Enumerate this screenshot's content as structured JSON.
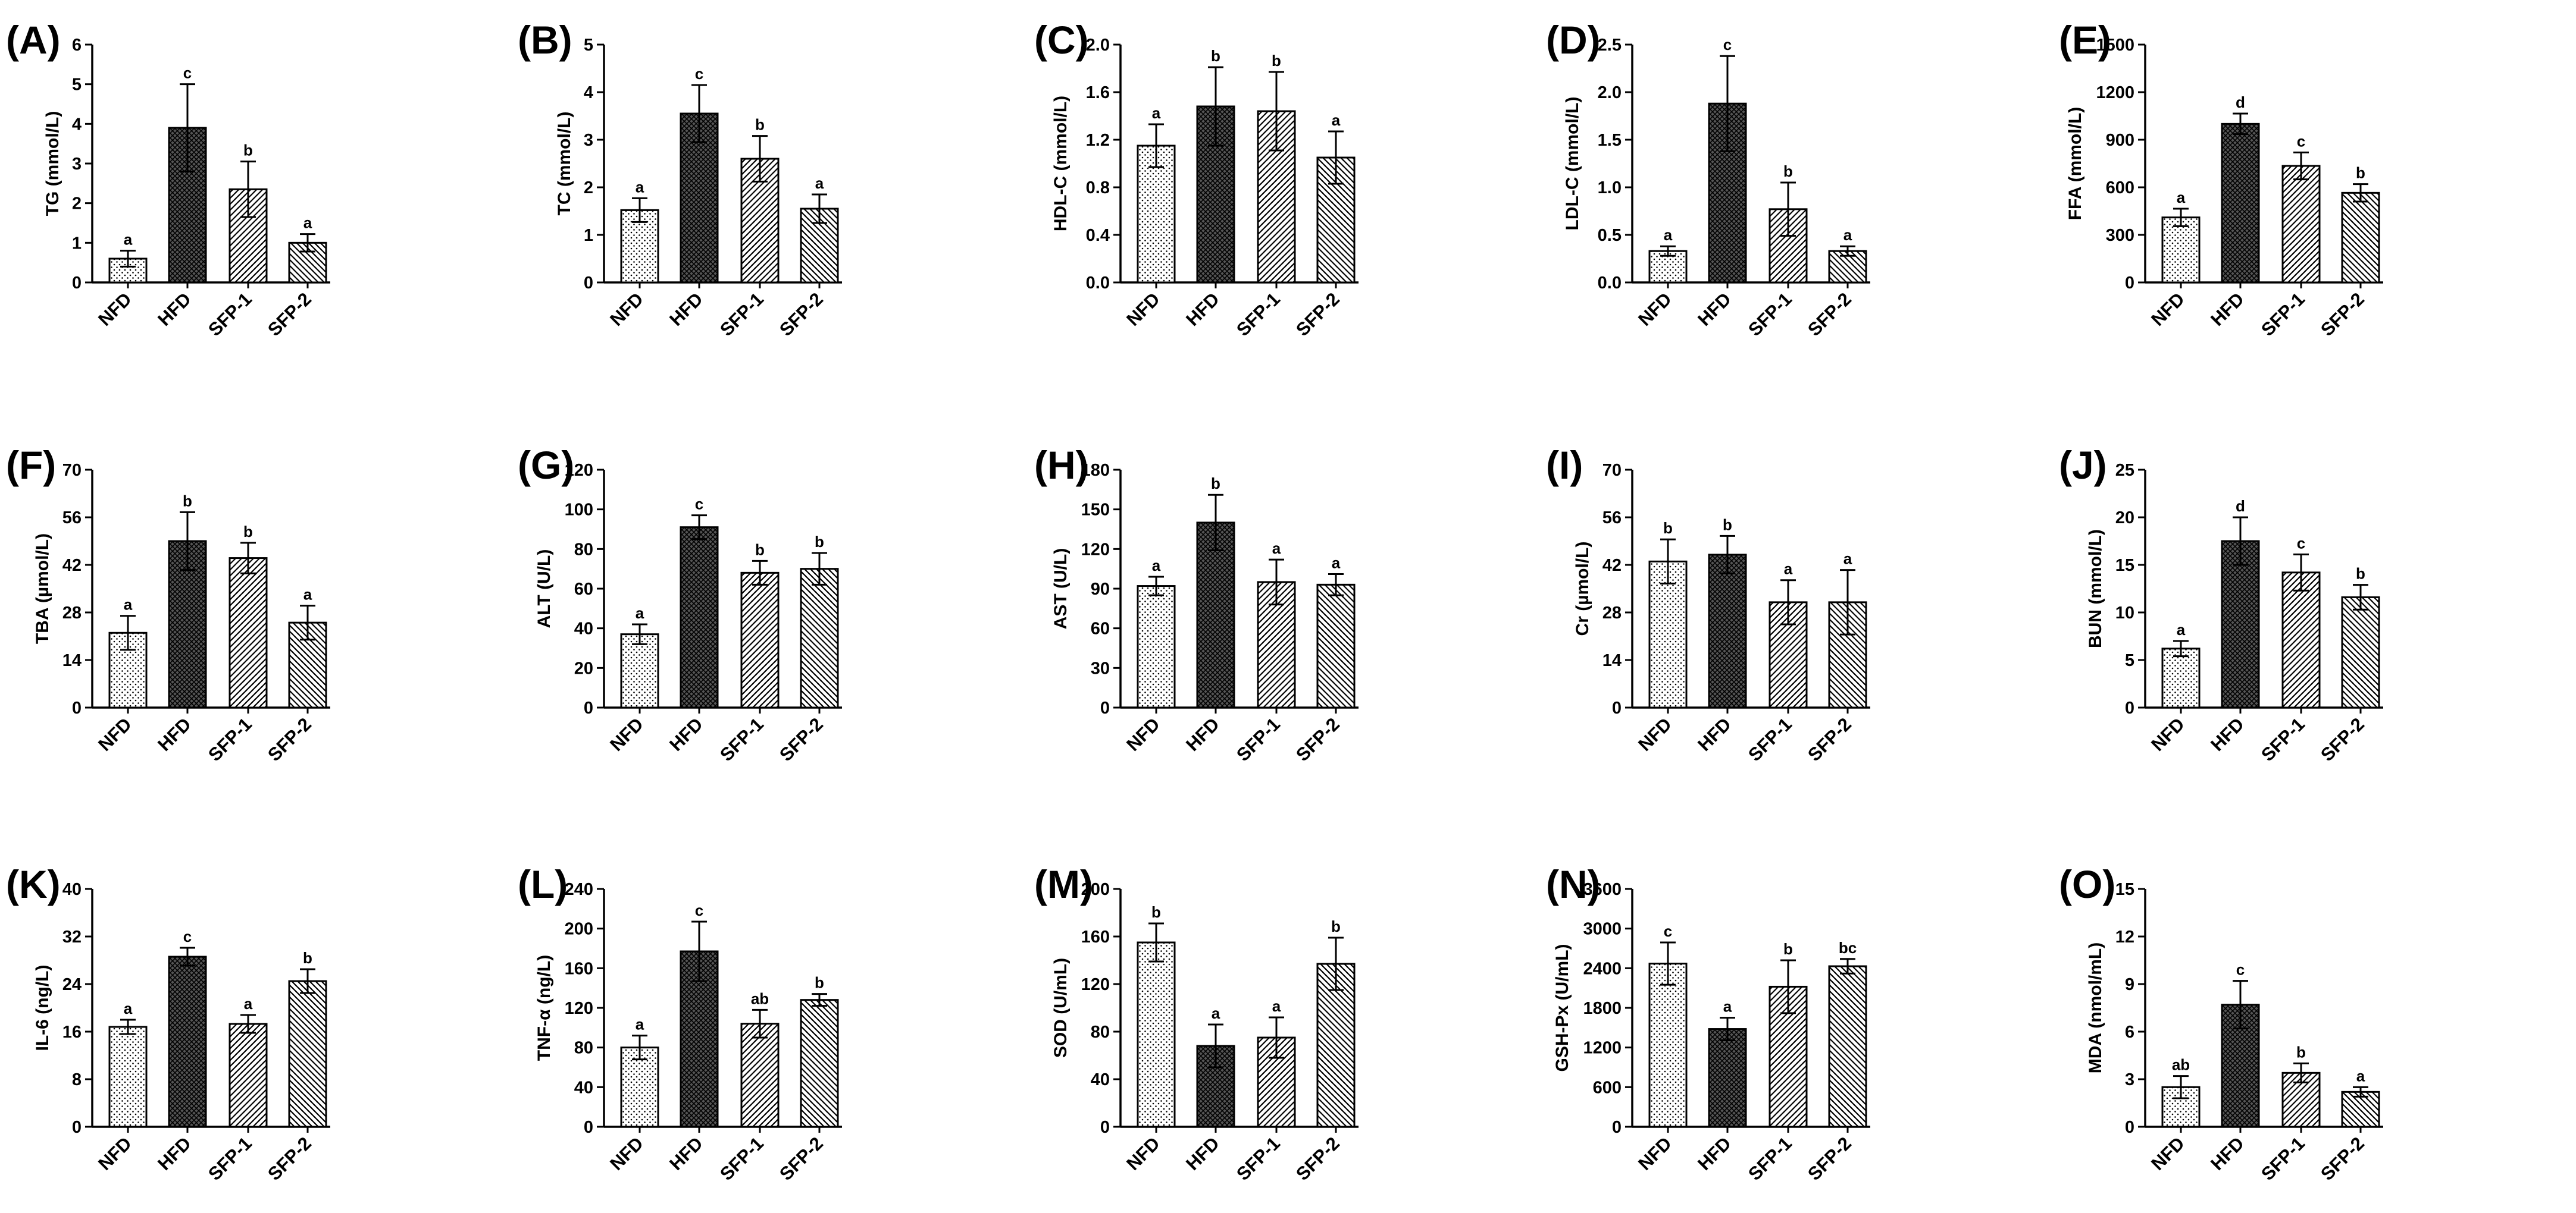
{
  "categories": [
    "NFD",
    "HFD",
    "SFP-1",
    "SFP-2"
  ],
  "patterns": [
    "dots",
    "crosshatch",
    "diag-right",
    "diag-left"
  ],
  "colors": {
    "ink": "#000000",
    "hfd_fill": "#555555",
    "background": "#ffffff"
  },
  "chart_data": [
    {
      "id": "A",
      "label": "(A)",
      "type": "bar",
      "ylabel": "TG (mmol/L)",
      "ylim": [
        0,
        6
      ],
      "ticks": [
        0,
        1,
        2,
        3,
        4,
        5,
        6
      ],
      "tick_labels": [
        "0",
        "1",
        "2",
        "3",
        "4",
        "5",
        "6"
      ],
      "categories": [
        "NFD",
        "HFD",
        "SFP-1",
        "SFP-2"
      ],
      "values": [
        0.6,
        3.9,
        2.35,
        1.0
      ],
      "errors": [
        0.2,
        1.1,
        0.7,
        0.22
      ],
      "sig": [
        "a",
        "c",
        "b",
        "a"
      ]
    },
    {
      "id": "B",
      "label": "(B)",
      "type": "bar",
      "ylabel": "TC (mmol/L)",
      "ylim": [
        0,
        5
      ],
      "ticks": [
        0,
        1,
        2,
        3,
        4,
        5
      ],
      "tick_labels": [
        "0",
        "1",
        "2",
        "3",
        "4",
        "5"
      ],
      "categories": [
        "NFD",
        "HFD",
        "SFP-1",
        "SFP-2"
      ],
      "values": [
        1.52,
        3.55,
        2.6,
        1.55
      ],
      "errors": [
        0.25,
        0.6,
        0.48,
        0.3
      ],
      "sig": [
        "a",
        "c",
        "b",
        "a"
      ]
    },
    {
      "id": "C",
      "label": "(C)",
      "type": "bar",
      "ylabel": "HDL-C (mmol/L)",
      "ylim": [
        0,
        2.0
      ],
      "ticks": [
        0,
        0.4,
        0.8,
        1.2,
        1.6,
        2.0
      ],
      "tick_labels": [
        "0.0",
        "0.4",
        "0.8",
        "1.2",
        "1.6",
        "2.0"
      ],
      "categories": [
        "NFD",
        "HFD",
        "SFP-1",
        "SFP-2"
      ],
      "values": [
        1.15,
        1.48,
        1.44,
        1.05
      ],
      "errors": [
        0.18,
        0.33,
        0.33,
        0.22
      ],
      "sig": [
        "a",
        "b",
        "b",
        "a"
      ]
    },
    {
      "id": "D",
      "label": "(D)",
      "type": "bar",
      "ylabel": "LDL-C (mmol/L)",
      "ylim": [
        0,
        2.5
      ],
      "ticks": [
        0,
        0.5,
        1.0,
        1.5,
        2.0,
        2.5
      ],
      "tick_labels": [
        "0.0",
        "0.5",
        "1.0",
        "1.5",
        "2.0",
        "2.5"
      ],
      "categories": [
        "NFD",
        "HFD",
        "SFP-1",
        "SFP-2"
      ],
      "values": [
        0.33,
        1.88,
        0.77,
        0.33
      ],
      "errors": [
        0.05,
        0.5,
        0.28,
        0.05
      ],
      "sig": [
        "a",
        "c",
        "b",
        "a"
      ]
    },
    {
      "id": "E",
      "label": "(E)",
      "type": "bar",
      "ylabel": "FFA (mmol/L)",
      "ylim": [
        0,
        1500
      ],
      "ticks": [
        0,
        300,
        600,
        900,
        1200,
        1500
      ],
      "tick_labels": [
        "0",
        "300",
        "600",
        "900",
        "1200",
        "1500"
      ],
      "categories": [
        "NFD",
        "HFD",
        "SFP-1",
        "SFP-2"
      ],
      "values": [
        410,
        1000,
        735,
        565
      ],
      "errors": [
        55,
        65,
        85,
        55
      ],
      "sig": [
        "a",
        "d",
        "c",
        "b"
      ]
    },
    {
      "id": "F",
      "label": "(F)",
      "type": "bar",
      "ylabel": "TBA (µmol/L)",
      "ylim": [
        0,
        70
      ],
      "ticks": [
        0,
        14,
        28,
        42,
        56,
        70
      ],
      "tick_labels": [
        "0",
        "14",
        "28",
        "42",
        "56",
        "70"
      ],
      "categories": [
        "NFD",
        "HFD",
        "SFP-1",
        "SFP-2"
      ],
      "values": [
        22,
        49,
        44,
        25
      ],
      "errors": [
        5,
        8.5,
        4.5,
        5
      ],
      "sig": [
        "a",
        "b",
        "b",
        "a"
      ]
    },
    {
      "id": "G",
      "label": "(G)",
      "type": "bar",
      "ylabel": "ALT (U/L)",
      "ylim": [
        0,
        120
      ],
      "ticks": [
        0,
        20,
        40,
        60,
        80,
        100,
        120
      ],
      "tick_labels": [
        "0",
        "20",
        "40",
        "60",
        "80",
        "100",
        "120"
      ],
      "categories": [
        "NFD",
        "HFD",
        "SFP-1",
        "SFP-2"
      ],
      "values": [
        37,
        91,
        68,
        70
      ],
      "errors": [
        5,
        6,
        6,
        8
      ],
      "sig": [
        "a",
        "c",
        "b",
        "b"
      ]
    },
    {
      "id": "H",
      "label": "(H)",
      "type": "bar",
      "ylabel": "AST (U/L)",
      "ylim": [
        0,
        180
      ],
      "ticks": [
        0,
        30,
        60,
        90,
        120,
        150,
        180
      ],
      "tick_labels": [
        "0",
        "30",
        "60",
        "90",
        "120",
        "150",
        "180"
      ],
      "categories": [
        "NFD",
        "HFD",
        "SFP-1",
        "SFP-2"
      ],
      "values": [
        92,
        140,
        95,
        93
      ],
      "errors": [
        7,
        21,
        17,
        8
      ],
      "sig": [
        "a",
        "b",
        "a",
        "a"
      ]
    },
    {
      "id": "I",
      "label": "(I)",
      "type": "bar",
      "ylabel": "Cr (µmol/L)",
      "ylim": [
        0,
        70
      ],
      "ticks": [
        0,
        14,
        28,
        42,
        56,
        70
      ],
      "tick_labels": [
        "0",
        "14",
        "28",
        "42",
        "56",
        "70"
      ],
      "categories": [
        "NFD",
        "HFD",
        "SFP-1",
        "SFP-2"
      ],
      "values": [
        43,
        45,
        31,
        31
      ],
      "errors": [
        6.5,
        5.5,
        6.5,
        9.5
      ],
      "sig": [
        "b",
        "b",
        "a",
        "a"
      ]
    },
    {
      "id": "J",
      "label": "(J)",
      "type": "bar",
      "ylabel": "BUN (mmol/L)",
      "ylim": [
        0,
        25
      ],
      "ticks": [
        0,
        5,
        10,
        15,
        20,
        25
      ],
      "tick_labels": [
        "0",
        "5",
        "10",
        "15",
        "20",
        "25"
      ],
      "categories": [
        "NFD",
        "HFD",
        "SFP-1",
        "SFP-2"
      ],
      "values": [
        6.2,
        17.5,
        14.2,
        11.6
      ],
      "errors": [
        0.8,
        2.5,
        1.9,
        1.3
      ],
      "sig": [
        "a",
        "d",
        "c",
        "b"
      ]
    },
    {
      "id": "K",
      "label": "(K)",
      "type": "bar",
      "ylabel": "IL-6 (ng/L)",
      "ylim": [
        0,
        40
      ],
      "ticks": [
        0,
        8,
        16,
        24,
        32,
        40
      ],
      "tick_labels": [
        "0",
        "8",
        "16",
        "24",
        "32",
        "40"
      ],
      "categories": [
        "NFD",
        "HFD",
        "SFP-1",
        "SFP-2"
      ],
      "values": [
        16.8,
        28.6,
        17.3,
        24.5
      ],
      "errors": [
        1.2,
        1.5,
        1.5,
        2.0
      ],
      "sig": [
        "a",
        "c",
        "a",
        "b"
      ]
    },
    {
      "id": "L",
      "label": "(L)",
      "type": "bar",
      "ylabel": "TNF-α (ng/L)",
      "ylim": [
        0,
        240
      ],
      "ticks": [
        0,
        40,
        80,
        120,
        160,
        200,
        240
      ],
      "tick_labels": [
        "0",
        "40",
        "80",
        "120",
        "160",
        "200",
        "240"
      ],
      "categories": [
        "NFD",
        "HFD",
        "SFP-1",
        "SFP-2"
      ],
      "values": [
        80,
        177,
        104,
        128
      ],
      "errors": [
        12,
        30,
        14,
        6
      ],
      "sig": [
        "a",
        "c",
        "ab",
        "b"
      ]
    },
    {
      "id": "M",
      "label": "(M)",
      "type": "bar",
      "ylabel": "SOD (U/mL)",
      "ylim": [
        0,
        200
      ],
      "ticks": [
        0,
        40,
        80,
        120,
        160,
        200
      ],
      "tick_labels": [
        "0",
        "40",
        "80",
        "120",
        "160",
        "200"
      ],
      "categories": [
        "NFD",
        "HFD",
        "SFP-1",
        "SFP-2"
      ],
      "values": [
        155,
        68,
        75,
        137
      ],
      "errors": [
        16,
        18,
        17,
        22
      ],
      "sig": [
        "b",
        "a",
        "a",
        "b"
      ]
    },
    {
      "id": "N",
      "label": "(N)",
      "type": "bar",
      "ylabel": "GSH-Px (U/mL)",
      "ylim": [
        0,
        3600
      ],
      "ticks": [
        0,
        600,
        1200,
        1800,
        2400,
        3000,
        3600
      ],
      "tick_labels": [
        "0",
        "600",
        "1200",
        "1800",
        "2400",
        "3000",
        "3600"
      ],
      "categories": [
        "NFD",
        "HFD",
        "SFP-1",
        "SFP-2"
      ],
      "values": [
        2470,
        1480,
        2120,
        2430
      ],
      "errors": [
        320,
        170,
        400,
        110
      ],
      "sig": [
        "c",
        "a",
        "b",
        "bc"
      ]
    },
    {
      "id": "O",
      "label": "(O)",
      "type": "bar",
      "ylabel": "MDA (nmol/mL)",
      "ylim": [
        0,
        15
      ],
      "ticks": [
        0,
        3,
        6,
        9,
        12,
        15
      ],
      "tick_labels": [
        "0",
        "3",
        "6",
        "9",
        "12",
        "15"
      ],
      "categories": [
        "NFD",
        "HFD",
        "SFP-1",
        "SFP-2"
      ],
      "values": [
        2.5,
        7.7,
        3.4,
        2.2
      ],
      "errors": [
        0.7,
        1.5,
        0.6,
        0.3
      ],
      "sig": [
        "ab",
        "c",
        "b",
        "a"
      ]
    }
  ]
}
